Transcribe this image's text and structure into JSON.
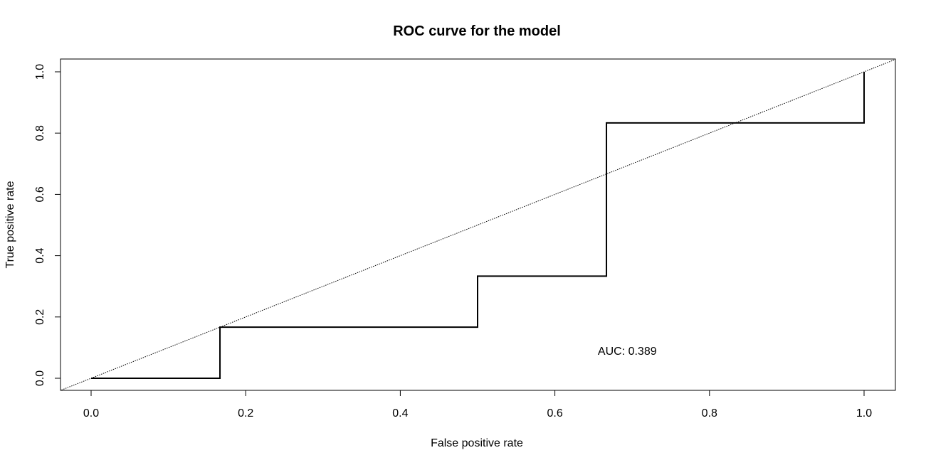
{
  "chart_data": {
    "type": "line",
    "title": "ROC curve for the model",
    "xlabel": "False positive rate",
    "ylabel": "True positive rate",
    "xlim": [
      0,
      1
    ],
    "ylim": [
      0,
      1
    ],
    "grid": false,
    "x_ticks": [
      "0.0",
      "0.2",
      "0.4",
      "0.6",
      "0.8",
      "1.0"
    ],
    "y_ticks": [
      "0.0",
      "0.2",
      "0.4",
      "0.6",
      "0.8",
      "1.0"
    ],
    "series": [
      {
        "style": "step",
        "color": "#000000",
        "x": [
          0,
          0.1667,
          0.1667,
          0.5,
          0.5,
          0.6667,
          0.6667,
          1.0,
          1.0
        ],
        "y": [
          0,
          0,
          0.1667,
          0.1667,
          0.3333,
          0.3333,
          0.8333,
          0.8333,
          1.0
        ]
      }
    ],
    "reference_line": {
      "style": "dotted",
      "from": [
        0,
        0
      ],
      "to": [
        1,
        1
      ]
    },
    "annotation": {
      "text": "AUC: 0.389",
      "x": 0.72,
      "y": 0.09
    }
  }
}
